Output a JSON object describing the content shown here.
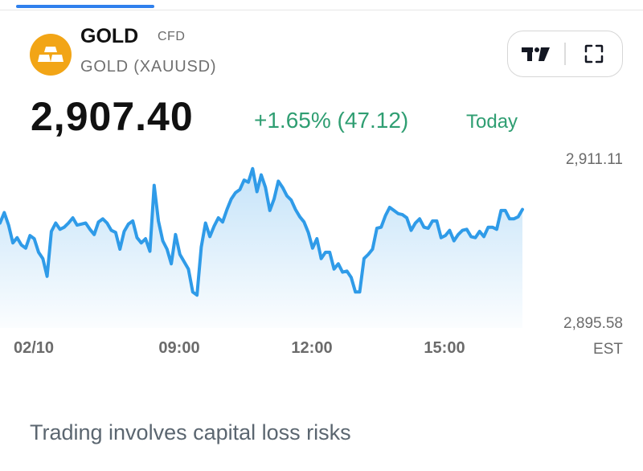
{
  "header": {
    "title": "GOLD",
    "badge": "CFD",
    "subtitle": "GOLD (XAUUSD)"
  },
  "quote": {
    "price": "2,907.40",
    "change": "+1.65% (47.12)",
    "period": "Today"
  },
  "toolbar": {
    "chart_button_icon": "tradingview-logo-icon",
    "fullscreen_button_icon": "expand-icon"
  },
  "chart_data": {
    "type": "area",
    "x_ticks": [
      "02/10",
      "09:00",
      "12:00",
      "15:00"
    ],
    "y_ticks": [
      "2,911.11",
      "2,895.58"
    ],
    "timezone": "EST",
    "ylim": [
      2895.58,
      2911.11
    ],
    "line_color": "#2f9be8",
    "series": [
      {
        "values": [
          2905.0,
          2906.0,
          2904.8,
          2903.1,
          2903.6,
          2902.9,
          2902.6,
          2903.8,
          2903.5,
          2902.2,
          2901.6,
          2899.9,
          2904.2,
          2905.0,
          2904.4,
          2904.6,
          2905.0,
          2905.5,
          2904.8,
          2904.9,
          2905.0,
          2904.4,
          2903.9,
          2905.1,
          2905.4,
          2905.0,
          2904.3,
          2904.1,
          2902.5,
          2904.2,
          2904.9,
          2905.2,
          2903.6,
          2903.1,
          2903.5,
          2902.3,
          2908.6,
          2905.2,
          2903.3,
          2902.5,
          2901.1,
          2903.9,
          2902.0,
          2901.3,
          2900.6,
          2898.4,
          2898.1,
          2902.7,
          2905.0,
          2903.7,
          2904.7,
          2905.5,
          2905.1,
          2906.3,
          2907.3,
          2907.9,
          2908.2,
          2909.1,
          2908.9,
          2910.2,
          2908.0,
          2909.6,
          2908.4,
          2906.2,
          2907.3,
          2909.0,
          2908.4,
          2907.6,
          2907.2,
          2906.3,
          2905.6,
          2905.1,
          2904.1,
          2902.6,
          2903.5,
          2901.6,
          2902.2,
          2902.2,
          2900.6,
          2901.1,
          2900.3,
          2900.4,
          2899.8,
          2898.4,
          2898.4,
          2901.6,
          2902.0,
          2902.5,
          2904.5,
          2904.6,
          2905.7,
          2906.5,
          2906.2,
          2905.9,
          2905.8,
          2905.5,
          2904.3,
          2905.0,
          2905.4,
          2904.6,
          2904.5,
          2905.2,
          2905.2,
          2903.6,
          2903.8,
          2904.3,
          2903.3,
          2903.9,
          2904.3,
          2904.4,
          2903.7,
          2903.6,
          2904.2,
          2903.7,
          2904.6,
          2904.6,
          2904.4,
          2906.2,
          2906.2,
          2905.4,
          2905.4,
          2905.6,
          2906.3
        ]
      }
    ]
  },
  "footer": {
    "disclaimer": "Trading involves capital loss risks"
  }
}
